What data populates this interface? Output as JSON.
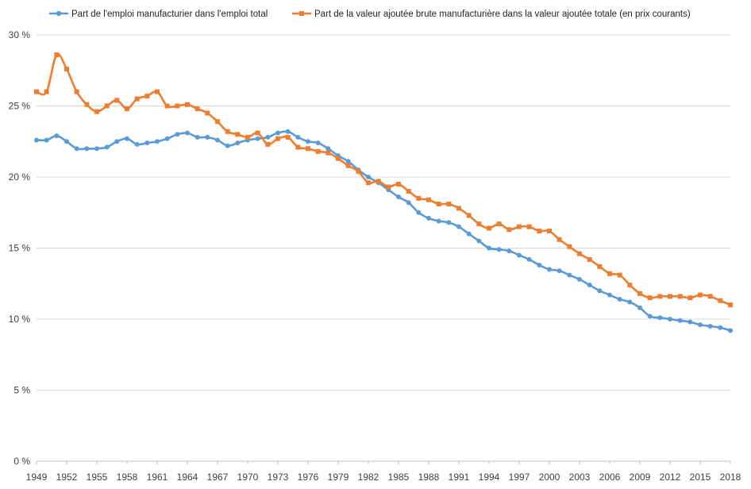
{
  "chart_data": {
    "type": "line",
    "title": "",
    "xlabel": "",
    "ylabel": "",
    "ylim": [
      0,
      30
    ],
    "y_ticks": [
      "0 %",
      "5 %",
      "10 %",
      "15 %",
      "20 %",
      "25 %",
      "30 %"
    ],
    "grid": "horizontal",
    "legend_position": "top",
    "x_ticks": [
      "1949",
      "1952",
      "1955",
      "1958",
      "1961",
      "1964",
      "1967",
      "1970",
      "1973",
      "1976",
      "1979",
      "1982",
      "1985",
      "1988",
      "1991",
      "1994",
      "1997",
      "2000",
      "2003",
      "2006",
      "2009",
      "2012",
      "2015",
      "2018"
    ],
    "years": [
      1949,
      1950,
      1951,
      1952,
      1953,
      1954,
      1955,
      1956,
      1957,
      1958,
      1959,
      1960,
      1961,
      1962,
      1963,
      1964,
      1965,
      1966,
      1967,
      1968,
      1969,
      1970,
      1971,
      1972,
      1973,
      1974,
      1975,
      1976,
      1977,
      1978,
      1979,
      1980,
      1981,
      1982,
      1983,
      1984,
      1985,
      1986,
      1987,
      1988,
      1989,
      1990,
      1991,
      1992,
      1993,
      1994,
      1995,
      1996,
      1997,
      1998,
      1999,
      2000,
      2001,
      2002,
      2003,
      2004,
      2005,
      2006,
      2007,
      2008,
      2009,
      2010,
      2011,
      2012,
      2013,
      2014,
      2015,
      2016,
      2017,
      2018
    ],
    "series": [
      {
        "name": "Part de l'emploi manufacturier dans l'emploi total",
        "color": "#5b9bd5",
        "marker": "circle",
        "values": [
          22.6,
          22.6,
          22.9,
          22.5,
          22.0,
          22.0,
          22.0,
          22.1,
          22.5,
          22.7,
          22.3,
          22.4,
          22.5,
          22.7,
          23.0,
          23.1,
          22.8,
          22.8,
          22.6,
          22.2,
          22.4,
          22.6,
          22.7,
          22.8,
          23.1,
          23.2,
          22.8,
          22.5,
          22.4,
          22.0,
          21.5,
          21.1,
          20.5,
          20.0,
          19.6,
          19.1,
          18.6,
          18.2,
          17.5,
          17.1,
          16.9,
          16.8,
          16.5,
          16.0,
          15.5,
          15.0,
          14.9,
          14.8,
          14.5,
          14.2,
          13.8,
          13.5,
          13.4,
          13.1,
          12.8,
          12.4,
          12.0,
          11.7,
          11.4,
          11.2,
          10.8,
          10.2,
          10.1,
          10.0,
          9.9,
          9.8,
          9.6,
          9.5,
          9.4,
          9.2
        ]
      },
      {
        "name": "Part de la valeur ajoutée brute manufacturière dans la valeur ajoutée totale (en prix courants)",
        "color": "#ed7d31",
        "marker": "square",
        "values": [
          26.0,
          26.0,
          28.6,
          27.6,
          26.0,
          25.1,
          24.6,
          25.0,
          25.4,
          24.8,
          25.5,
          25.7,
          26.0,
          25.0,
          25.0,
          25.1,
          24.8,
          24.5,
          23.9,
          23.2,
          23.0,
          22.8,
          23.1,
          22.3,
          22.7,
          22.8,
          22.1,
          22.0,
          21.8,
          21.7,
          21.3,
          20.8,
          20.4,
          19.6,
          19.7,
          19.3,
          19.5,
          19.0,
          18.5,
          18.4,
          18.1,
          18.1,
          17.8,
          17.3,
          16.7,
          16.4,
          16.7,
          16.3,
          16.5,
          16.5,
          16.2,
          16.2,
          15.6,
          15.1,
          14.6,
          14.2,
          13.7,
          13.2,
          13.1,
          12.4,
          11.8,
          11.5,
          11.6,
          11.6,
          11.6,
          11.5,
          11.7,
          11.6,
          11.3,
          11.0
        ]
      }
    ]
  }
}
